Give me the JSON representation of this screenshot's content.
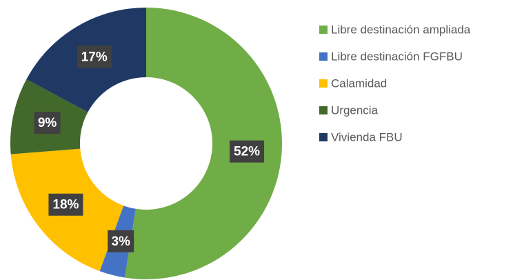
{
  "chart_data": {
    "type": "donut",
    "categories": [
      "Libre destinación ampliada",
      "Libre destinación FGFBU",
      "Calamidad",
      "Urgencia",
      "Vivienda FBU"
    ],
    "values": [
      52,
      3,
      18,
      9,
      17
    ],
    "value_labels": [
      "52%",
      "3%",
      "18%",
      "9%",
      "17%"
    ],
    "colors": [
      "#70ad47",
      "#4472c4",
      "#ffc000",
      "#43682b",
      "#203864"
    ],
    "legend": "right"
  }
}
